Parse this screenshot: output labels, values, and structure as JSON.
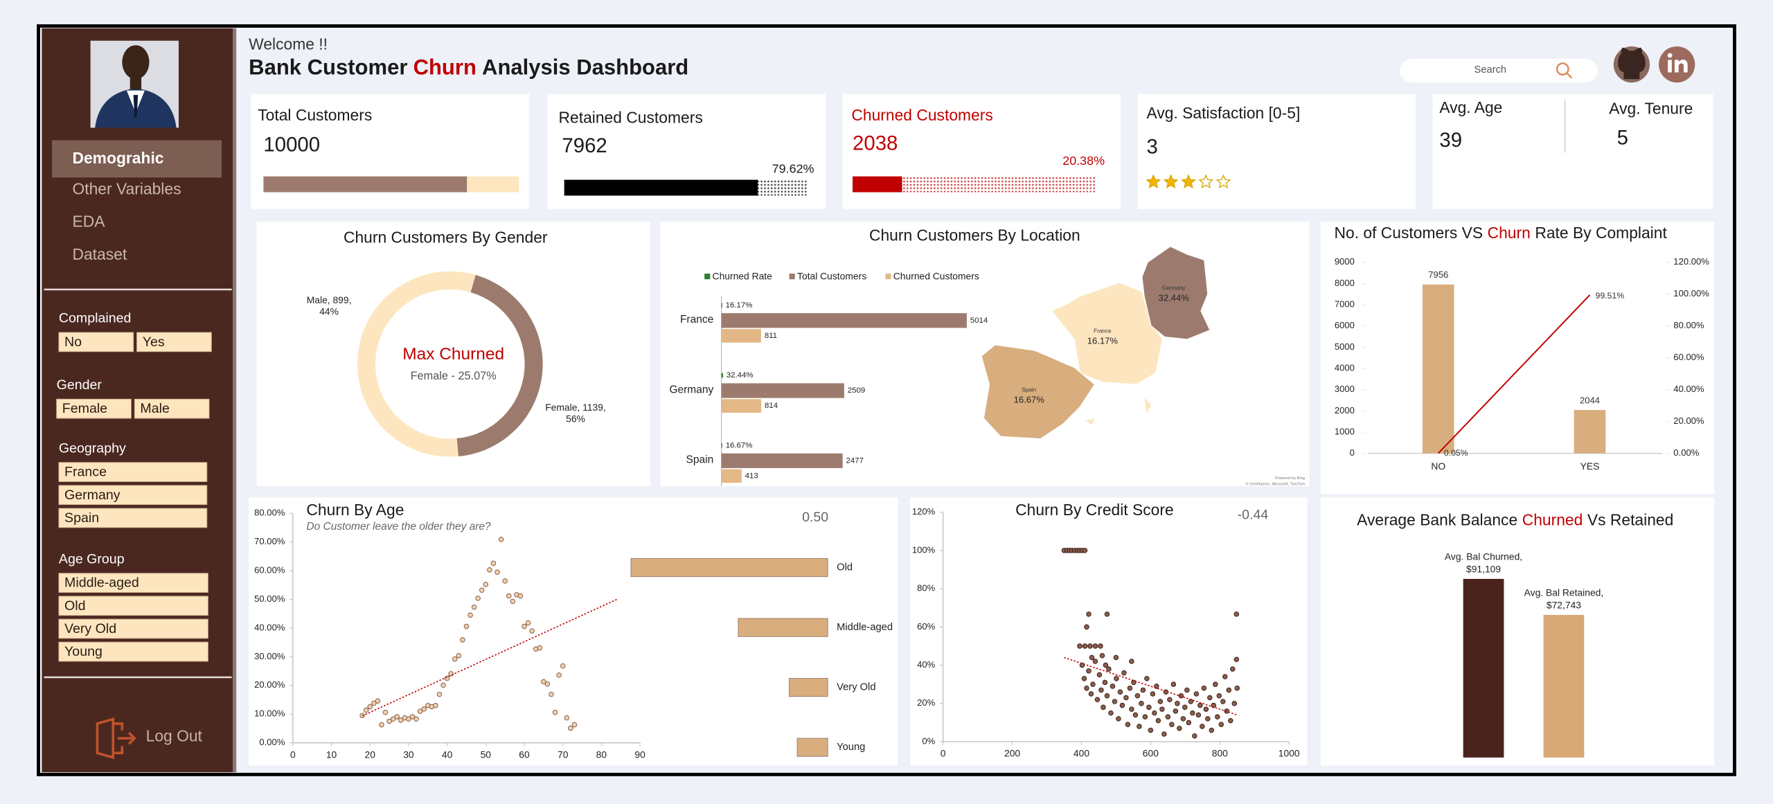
{
  "header": {
    "welcome": "Welcome !!",
    "title": [
      "Bank Customer",
      "Churn",
      "Analysis Dashboard"
    ],
    "search": "Search"
  },
  "sidebar": {
    "menu": [
      "Demograhic",
      "Other Variables",
      "EDA",
      "Dataset"
    ],
    "filters": [
      {
        "label": "Complained",
        "options": [
          "No",
          "Yes"
        ]
      },
      {
        "label": "Gender",
        "options": [
          "Female",
          "Male"
        ]
      },
      {
        "label": "Geography",
        "options": [
          "France",
          "Germany",
          "Spain"
        ]
      },
      {
        "label": "Age Group",
        "options": [
          "Middle-aged",
          "Old",
          "Very Old",
          "Young"
        ]
      }
    ],
    "logout": "Log Out"
  },
  "kpis": {
    "total": {
      "label": "Total Customers",
      "value": 10000
    },
    "retained": {
      "label": "Retained Customers",
      "value": 7962,
      "percent": 79.62,
      "percent_label": "79.62%"
    },
    "churned": {
      "label": "Churned Customers",
      "value": 2038,
      "percent": 20.38,
      "percent_label": "20.38%"
    },
    "satisfaction": {
      "label": "Avg. Satisfaction [0-5]",
      "value": 3,
      "max": 5
    },
    "age": {
      "label": "Avg. Age",
      "value": 39
    },
    "tenure": {
      "label": "Avg. Tenure",
      "value": 5
    }
  },
  "chart_data": [
    {
      "type": "donut",
      "title": "Churn Customers By Gender",
      "values": [
        899,
        1139
      ],
      "value_labels": [
        "Male, 899,",
        "Female, 1139,"
      ],
      "percents": [
        44,
        56
      ],
      "percent_labels": [
        "44%",
        "56%"
      ],
      "colors": [
        "#9c7b6e",
        "#fde6bf"
      ],
      "center_title": "Max Churned",
      "center_subtitle": "Female - 25.07%"
    },
    {
      "type": "bar",
      "orientation": "horizontal",
      "title": "Churn Customers By Location",
      "categories": [
        "France",
        "Germany",
        "Spain"
      ],
      "series": [
        {
          "name": "Churned Rate",
          "color": "#2e7d32",
          "values": [
            16.17,
            32.44,
            16.67
          ],
          "value_labels": [
            "16.17%",
            "32.44%",
            "16.67%"
          ]
        },
        {
          "name": "Total Customers",
          "color": "#9c7b6e",
          "values": [
            5014,
            2509,
            2477
          ]
        },
        {
          "name": "Churned Customers",
          "color": "#e3b886",
          "values": [
            811,
            814,
            413
          ]
        }
      ],
      "map_colors": [
        "#fde6bf",
        "#9c7b6e",
        "#d9ae7e"
      ],
      "map_credit": [
        "Powered by Bing",
        "© GeoNames, Microsoft, TomTom"
      ]
    },
    {
      "type": "combo",
      "title": [
        "No. of Customers VS",
        "Churn",
        "Rate By Complaint"
      ],
      "categories": [
        "NO",
        "YES"
      ],
      "values": [
        7956,
        2044
      ],
      "color": "#d9ae7e",
      "y2_values": [
        0.05,
        99.51
      ],
      "y2_value_labels": [
        "0.05%",
        "99.51%"
      ],
      "line_color": "#c00000",
      "ylim": [
        0,
        9000
      ],
      "yticks": [
        0,
        1000,
        2000,
        3000,
        4000,
        5000,
        6000,
        7000,
        8000,
        9000
      ],
      "y2lim": [
        0,
        120
      ],
      "y2ticks": [
        {
          "value": 0,
          "label": "0.00%"
        },
        {
          "value": 20,
          "label": "20.00%"
        },
        {
          "value": 40,
          "label": "40.00%"
        },
        {
          "value": 60,
          "label": "60.00%"
        },
        {
          "value": 80,
          "label": "80.00%"
        },
        {
          "value": 100,
          "label": "100.00%"
        },
        {
          "value": 120,
          "label": "120.00%"
        }
      ]
    },
    {
      "type": "scatter",
      "title": "Churn By Age",
      "subtitle": "Do Customer leave the older they are?",
      "correlation": {
        "value": 0.5,
        "label": "0.50"
      },
      "x": [
        18,
        19,
        20,
        21,
        22,
        23,
        24,
        25,
        26,
        27,
        28,
        29,
        30,
        31,
        32,
        33,
        34,
        35,
        36,
        37,
        38,
        39,
        40,
        41,
        42,
        43,
        44,
        45,
        46,
        47,
        48,
        49,
        50,
        51,
        52,
        53,
        54,
        55,
        56,
        57,
        58,
        59,
        60,
        61,
        62,
        63,
        64,
        65,
        66,
        67,
        68,
        69,
        70,
        71,
        72,
        73
      ],
      "values": [
        9.5,
        11.4,
        12.6,
        13.8,
        14.6,
        6.3,
        10.6,
        7.5,
        8.3,
        9.1,
        7.9,
        8.7,
        8.3,
        9.1,
        8.3,
        11,
        11.8,
        13,
        12.6,
        13,
        16.9,
        20.1,
        22.5,
        24.1,
        29.2,
        30.4,
        35.9,
        40.6,
        44.5,
        47.3,
        50.4,
        53.2,
        55.2,
        60.3,
        62.6,
        59.5,
        70.9,
        56.4,
        51.2,
        49.3,
        51.6,
        51.2,
        40.6,
        41.8,
        39,
        32.7,
        33.1,
        21.3,
        20.5,
        16.9,
        10.6,
        23.6,
        26.8,
        8.7,
        5.1,
        6.3
      ],
      "color": "#ecd2b0",
      "edge_color": "#8a5a44",
      "trendline": {
        "x": [
          18,
          84
        ],
        "values": [
          9.4,
          50
        ],
        "color": "#c00000"
      },
      "xlim": [
        0,
        90
      ],
      "xticks": [
        0,
        10,
        20,
        30,
        40,
        50,
        60,
        70,
        80,
        90
      ],
      "ylim": [
        0,
        80
      ],
      "yticks": [
        {
          "value": 0,
          "label": "0.00%"
        },
        {
          "value": 10,
          "label": "10.00%"
        },
        {
          "value": 20,
          "label": "20.00%"
        },
        {
          "value": 30,
          "label": "30.00%"
        },
        {
          "value": 40,
          "label": "40.00%"
        },
        {
          "value": 50,
          "label": "50.00%"
        },
        {
          "value": 60,
          "label": "60.00%"
        },
        {
          "value": 70,
          "label": "70.00%"
        },
        {
          "value": 80,
          "label": "80.00%"
        }
      ],
      "groups": {
        "categories": [
          "Old",
          "Middle-aged",
          "Very Old",
          "Young"
        ],
        "values": [
          1129,
          513,
          221,
          175
        ],
        "color": "#d9ae7e"
      }
    },
    {
      "type": "scatter",
      "title": "Churn By Credit Score",
      "correlation": {
        "value": -0.44,
        "label": "-0.44"
      },
      "x": [
        350,
        358,
        365,
        372,
        380,
        388,
        395,
        402,
        410,
        421,
        474,
        848,
        415,
        395,
        410,
        425,
        440,
        455,
        430,
        460,
        470,
        500,
        545,
        402,
        408,
        415,
        421,
        428,
        433,
        440,
        446,
        452,
        457,
        463,
        468,
        474,
        479,
        485,
        490,
        496,
        501,
        507,
        512,
        518,
        523,
        529,
        534,
        540,
        545,
        551,
        556,
        562,
        567,
        573,
        578,
        584,
        589,
        595,
        600,
        606,
        611,
        617,
        622,
        628,
        633,
        639,
        644,
        650,
        655,
        661,
        666,
        672,
        677,
        683,
        688,
        694,
        699,
        705,
        710,
        716,
        721,
        727,
        732,
        738,
        743,
        749,
        754,
        760,
        765,
        771,
        776,
        782,
        787,
        793,
        798,
        804,
        809,
        815,
        820,
        826,
        831,
        837,
        842,
        848,
        850
      ],
      "values": [
        100,
        100,
        100,
        100,
        100,
        100,
        100,
        100,
        100,
        66.67,
        66.67,
        66.67,
        60,
        50,
        50,
        50,
        50,
        50,
        44,
        45,
        40,
        44,
        42,
        40,
        33,
        28,
        37,
        25,
        30,
        42,
        22,
        35,
        27,
        18,
        31,
        24,
        38,
        15,
        29,
        21,
        33,
        12,
        26,
        19,
        36,
        23,
        9,
        28,
        17,
        31,
        14,
        24,
        8,
        20,
        27,
        13,
        33,
        18,
        6,
        25,
        15,
        29,
        11,
        21,
        17,
        4,
        26,
        13,
        22,
        9,
        30,
        16,
        20,
        7,
        24,
        12,
        18,
        27,
        10,
        21,
        15,
        3,
        25,
        14,
        19,
        8,
        28,
        17,
        12,
        23,
        6,
        19,
        30,
        13,
        24,
        9,
        21,
        34,
        16,
        27,
        11,
        38,
        20,
        43,
        28
      ],
      "color": "#8b5e4e",
      "edge_color": "#3b1f17",
      "trendline": {
        "x": [
          350,
          850
        ],
        "values": [
          44,
          14
        ],
        "color": "#c00000"
      },
      "xlim": [
        0,
        1000
      ],
      "xticks": [
        0,
        200,
        400,
        600,
        800,
        1000
      ],
      "ylim": [
        0,
        120
      ],
      "yticks": [
        {
          "value": 0,
          "label": "0%"
        },
        {
          "value": 20,
          "label": "20%"
        },
        {
          "value": 40,
          "label": "40%"
        },
        {
          "value": 60,
          "label": "60%"
        },
        {
          "value": 80,
          "label": "80%"
        },
        {
          "value": 100,
          "label": "100%"
        },
        {
          "value": 120,
          "label": "120%"
        }
      ]
    },
    {
      "type": "bar",
      "title": [
        "Average Bank Balance",
        "Churned",
        "Vs Retained"
      ],
      "categories": [
        "Avg. Bal Churned,",
        "Avg. Bal Retained,"
      ],
      "values": [
        91109,
        72743
      ],
      "value_labels": [
        "$91,109",
        "$72,743"
      ],
      "colors": [
        "#4b231d",
        "#d9a877"
      ]
    }
  ]
}
